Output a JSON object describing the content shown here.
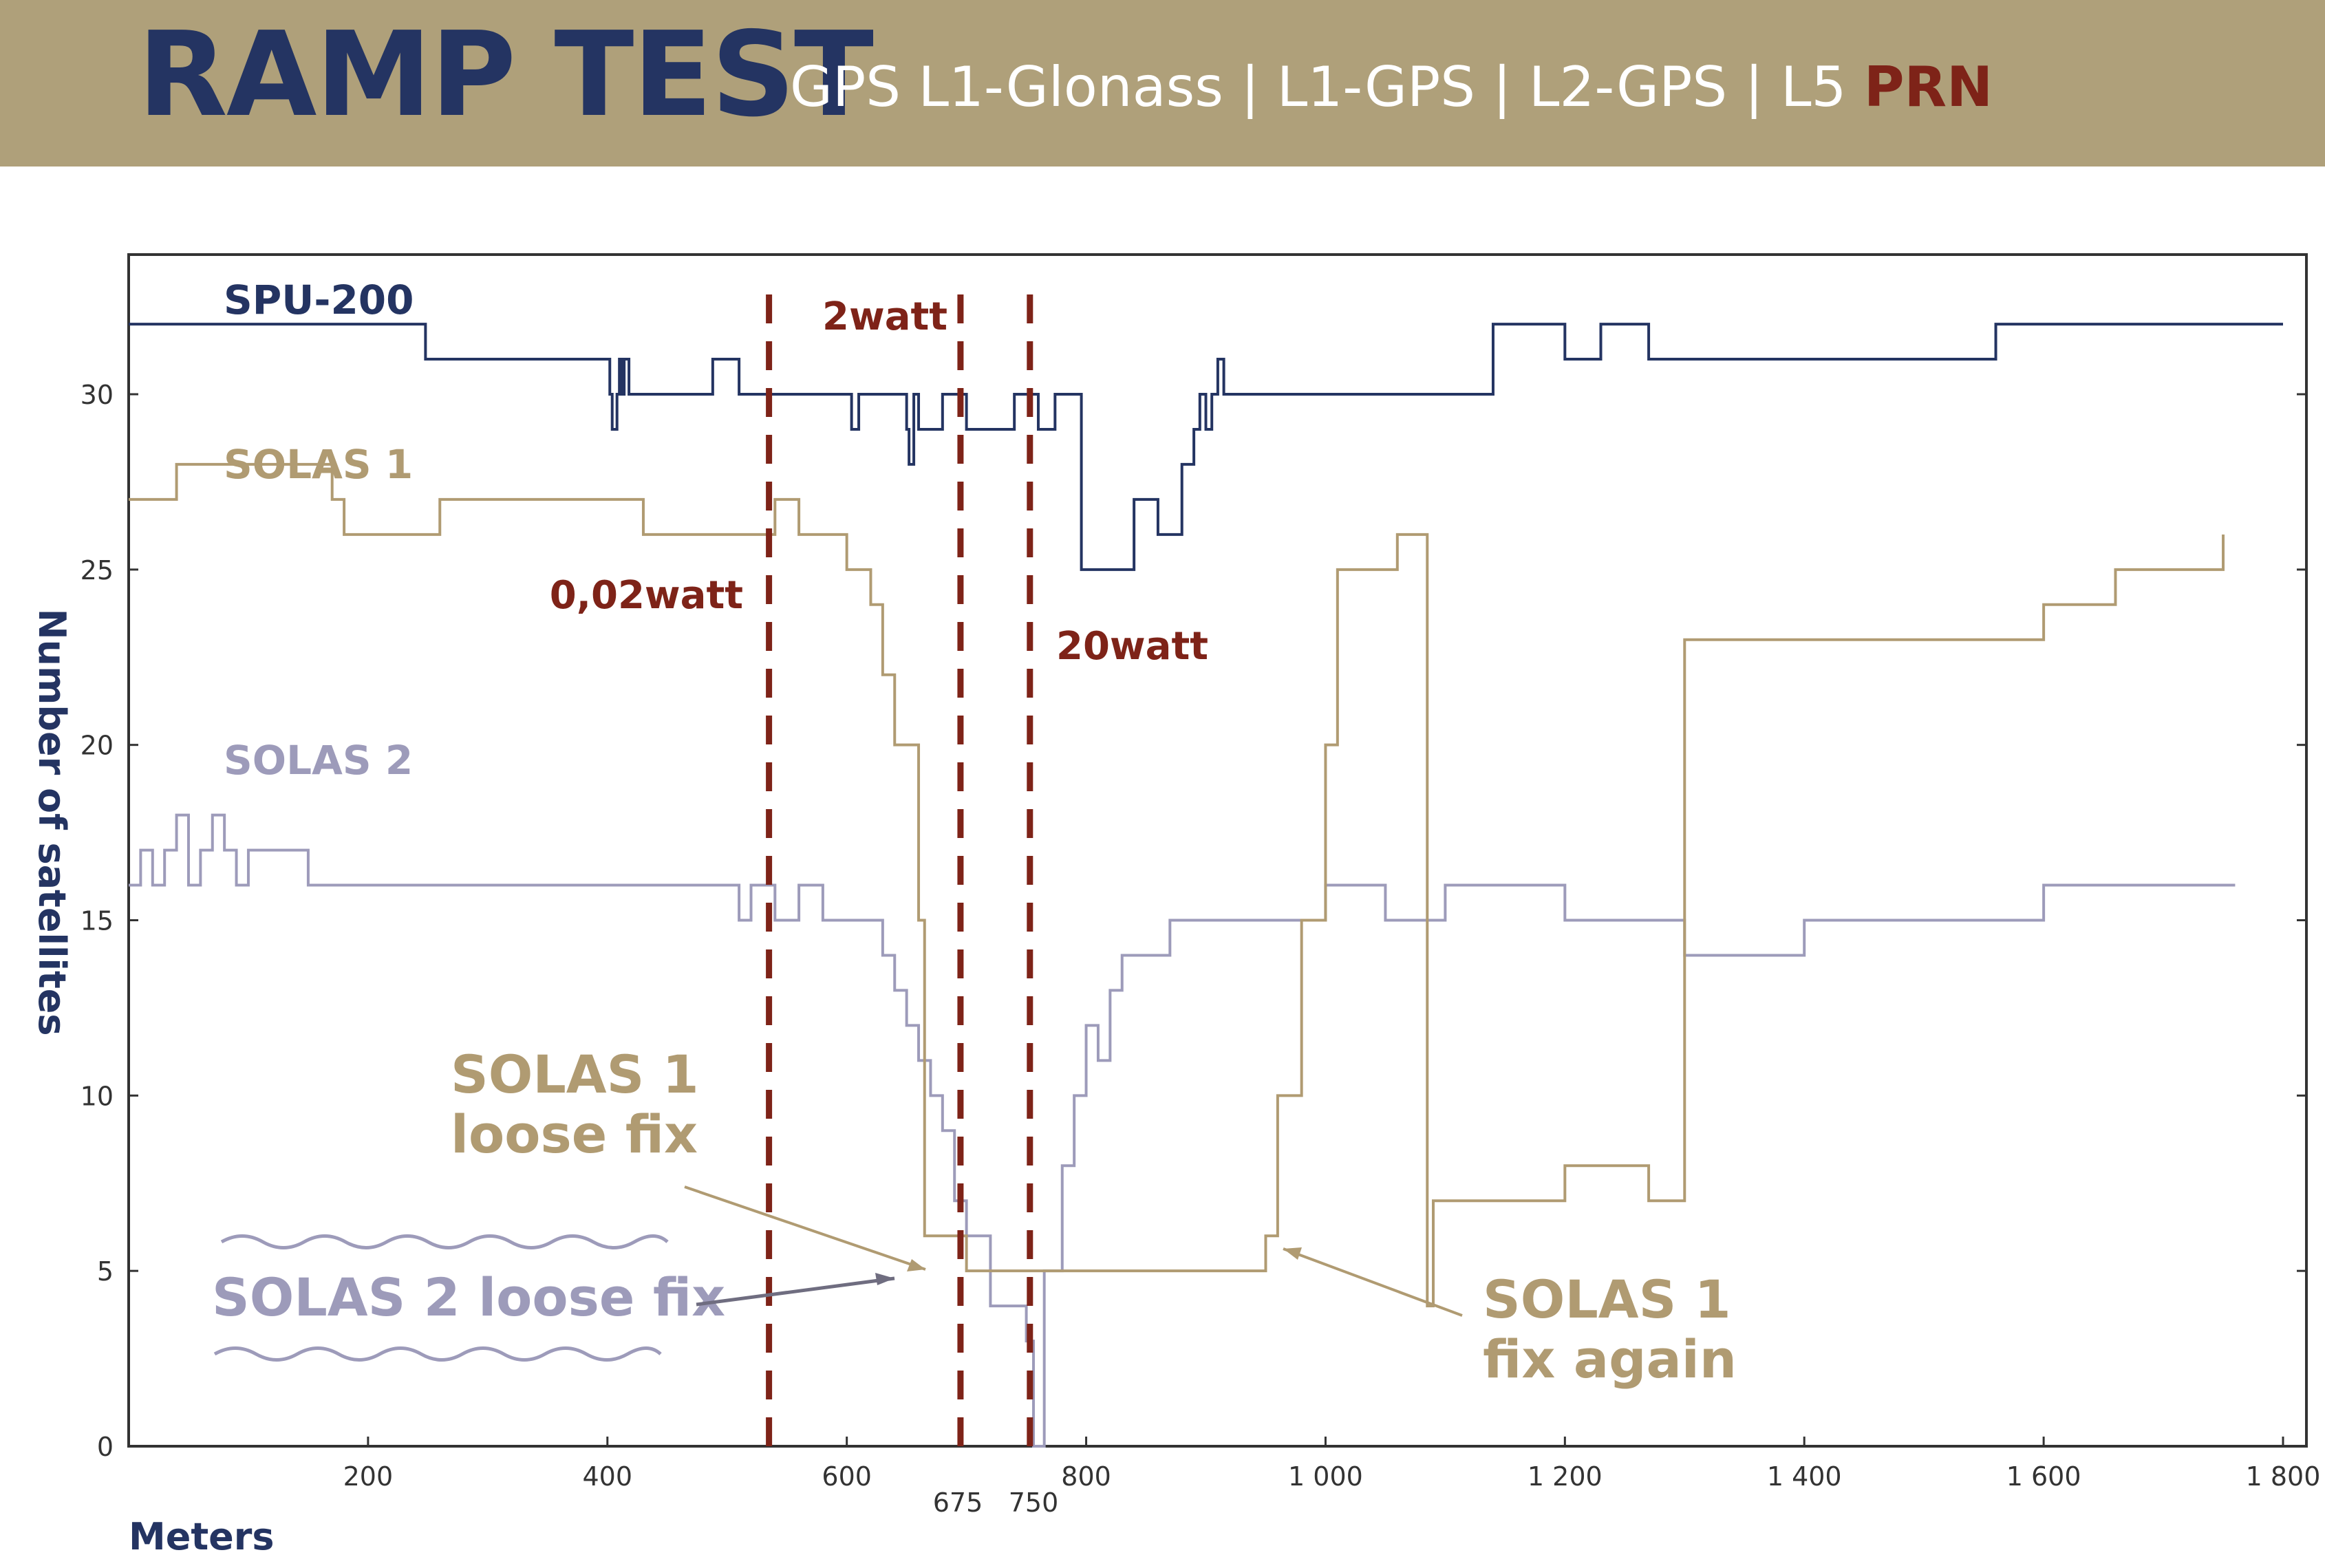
{
  "header": {
    "title": "RAMP TEST",
    "subtitle_main": "GPS L1-Glonass | L1-GPS |  L2-GPS | L5 ",
    "subtitle_accent": "PRN"
  },
  "colors": {
    "header_bg": "#afa07a",
    "title": "#243462",
    "accent": "#7e2318",
    "spu": "#243462",
    "solas1": "#b09b72",
    "solas2": "#9d9bba"
  },
  "chart_data": {
    "type": "line",
    "xlabel": "Meters",
    "ylabel": "Number of satellites",
    "xlim": [
      0,
      1800
    ],
    "ylim": [
      0,
      34
    ],
    "x_ticks": [
      200,
      400,
      600,
      800,
      1000,
      1200,
      1400,
      1600,
      1800
    ],
    "x_tick_labels": [
      "200",
      "400",
      "600",
      "800",
      "1 000",
      "1 200",
      "1 400",
      "1 600",
      "1 800"
    ],
    "y_ticks": [
      0,
      5,
      10,
      15,
      20,
      25,
      30
    ],
    "y_tick_labels": [
      "0",
      "5",
      "10",
      "15",
      "20",
      "25",
      "30"
    ],
    "grid": false,
    "series": [
      {
        "name": "SPU-200",
        "x": [
          0,
          248,
          248,
          400,
          402,
          404,
          408,
          410,
          412,
          414,
          416,
          418,
          420,
          440,
          488,
          510,
          600,
          604,
          610,
          650,
          652,
          656,
          660,
          680,
          690,
          700,
          740,
          760,
          774,
          796,
          810,
          840,
          860,
          880,
          888,
          890,
          895,
          900,
          905,
          910,
          915,
          920,
          930,
          960,
          1000,
          1140,
          1178,
          1200,
          1230,
          1265,
          1270,
          1300,
          1400,
          1500,
          1560,
          1700,
          1800
        ],
        "y": [
          32,
          32,
          31,
          31,
          30,
          29,
          30,
          31,
          30,
          31,
          31,
          30,
          30,
          30,
          31,
          30,
          30,
          29,
          30,
          29,
          28,
          30,
          29,
          30,
          30,
          29,
          30,
          29,
          30,
          25,
          25,
          27,
          26,
          28,
          28,
          29,
          30,
          29,
          30,
          31,
          30,
          30,
          30,
          30,
          30,
          32,
          32,
          31,
          32,
          32,
          31,
          31,
          31,
          31,
          32,
          32,
          32
        ]
      },
      {
        "name": "SOLAS 1",
        "x": [
          0,
          30,
          40,
          170,
          180,
          260,
          430,
          540,
          560,
          600,
          620,
          630,
          640,
          660,
          665,
          700,
          750,
          760,
          840,
          940,
          950,
          960,
          980,
          1000,
          1010,
          1050,
          1060,
          1080,
          1085,
          1090,
          1100,
          1200,
          1270,
          1300,
          1400,
          1560,
          1600,
          1660,
          1750
        ],
        "y": [
          27,
          27,
          28,
          27,
          26,
          27,
          26,
          27,
          26,
          25,
          24,
          22,
          20,
          15,
          6,
          5,
          5,
          5,
          5,
          5,
          6,
          10,
          15,
          20,
          25,
          25,
          26,
          26,
          4,
          7,
          7,
          8,
          7,
          23,
          23,
          23,
          24,
          25,
          26
        ]
      },
      {
        "name": "SOLAS 2",
        "x": [
          0,
          10,
          20,
          30,
          40,
          50,
          60,
          70,
          80,
          90,
          100,
          150,
          200,
          250,
          300,
          400,
          500,
          510,
          520,
          540,
          560,
          580,
          600,
          620,
          630,
          640,
          650,
          660,
          670,
          680,
          690,
          700,
          720,
          750,
          756,
          760,
          765,
          780,
          790,
          800,
          810,
          820,
          830,
          840,
          850,
          860,
          870,
          880,
          900,
          920,
          940,
          960,
          980,
          1000,
          1050,
          1100,
          1200,
          1260,
          1300,
          1350,
          1400,
          1450,
          1500,
          1550,
          1600,
          1650,
          1700,
          1760
        ],
        "y": [
          16,
          17,
          16,
          17,
          18,
          16,
          17,
          18,
          17,
          16,
          17,
          16,
          16,
          16,
          16,
          16,
          16,
          15,
          16,
          15,
          16,
          15,
          15,
          15,
          14,
          13,
          12,
          11,
          10,
          9,
          7,
          6,
          4,
          3,
          0,
          0,
          5,
          8,
          10,
          12,
          11,
          13,
          14,
          14,
          14,
          14,
          15,
          15,
          15,
          15,
          15,
          15,
          15,
          16,
          15,
          16,
          15,
          15,
          14,
          14,
          15,
          15,
          15,
          15,
          16,
          16,
          16,
          16
        ]
      }
    ],
    "vlines": [
      {
        "x": 535,
        "label": "0,02watt"
      },
      {
        "x": 695,
        "label": "2watt"
      },
      {
        "x": 753,
        "label": "20watt"
      }
    ],
    "extra_x_labels": [
      "675",
      "750"
    ],
    "annotations": [
      {
        "line1": "SOLAS 1",
        "line2": "loose fix"
      },
      {
        "line1": "SOLAS 2 loose fix"
      },
      {
        "line1": "SOLAS 1",
        "line2": "fix again"
      }
    ]
  }
}
